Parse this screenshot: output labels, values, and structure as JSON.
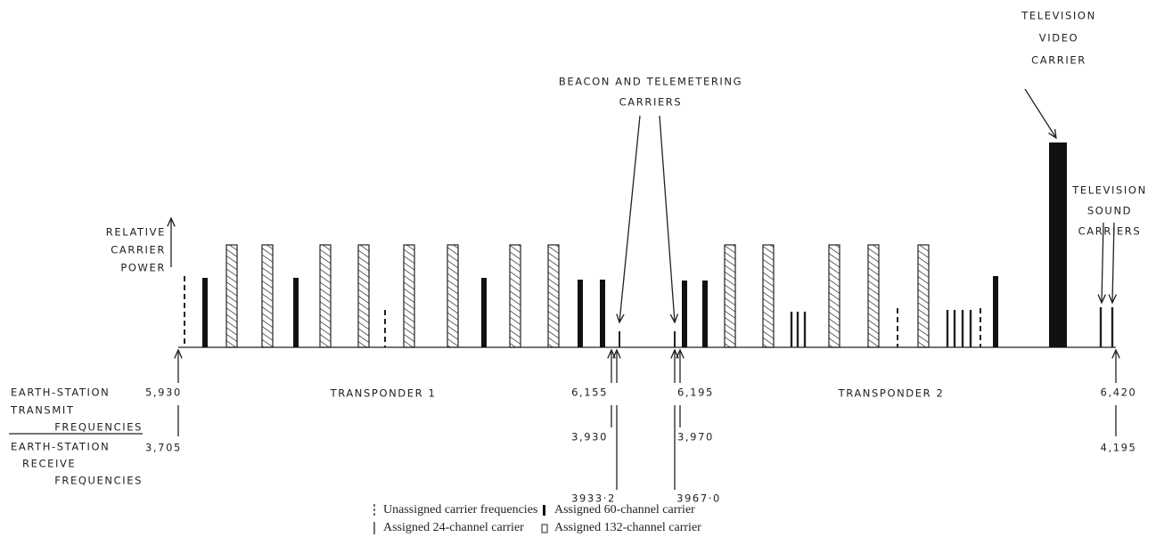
{
  "beacon_label": [
    "BEACON AND TELEMETERING",
    "CARRIERS"
  ],
  "tv_video_label": [
    "TELEVISION",
    "VIDEO",
    "CARRIER"
  ],
  "tv_sound_label": [
    "TELEVISION",
    "SOUND",
    "CARRIERS"
  ],
  "power_axis_label": [
    "RELATIVE",
    "CARRIER",
    "POWER"
  ],
  "transmit_label": [
    "EARTH-STATION",
    "TRANSMIT",
    "FREQUENCIES"
  ],
  "receive_label": [
    "EARTH-STATION",
    "RECEIVE",
    "FREQUENCIES"
  ],
  "transponders": [
    "TRANSPONDER 1",
    "TRANSPONDER 2"
  ],
  "transmit_frequencies": [
    "5,930",
    "6,155",
    "6,195",
    "6,420"
  ],
  "receive_frequencies": [
    "3,705",
    "3,930",
    "3,970",
    "4,195"
  ],
  "beacon_frequencies": [
    "3933·2",
    "3967·0"
  ],
  "legend": [
    "Unassigned carrier frequencies",
    "Assigned 24-channel carrier",
    "Assigned 60-channel carrier",
    "Assigned 132-channel carrier"
  ]
}
